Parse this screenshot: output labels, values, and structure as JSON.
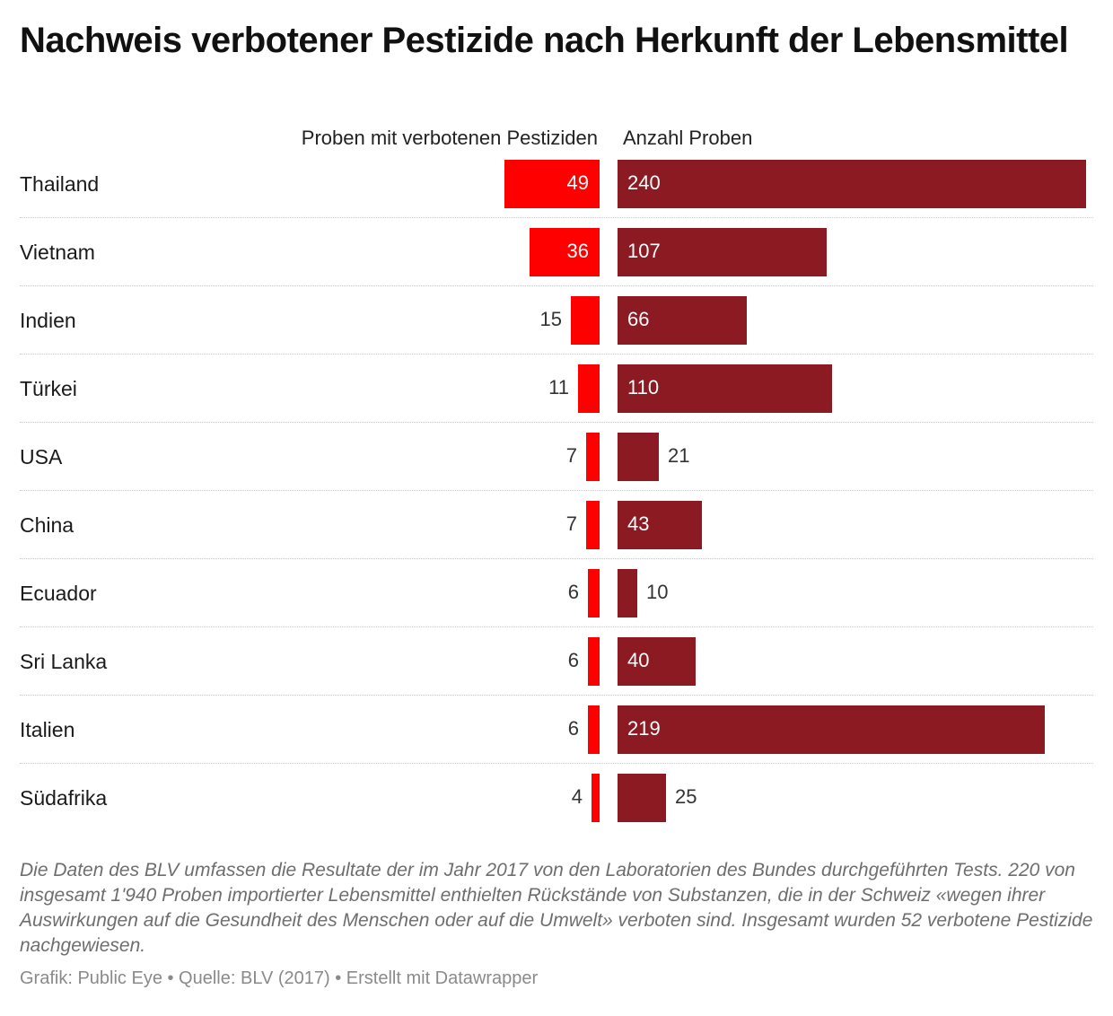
{
  "title": "Nachweis verbotener Pestizide nach Herkunft der Lebensmittel",
  "chart_data": {
    "type": "bar",
    "orientation": "horizontal",
    "categories": [
      "Thailand",
      "Vietnam",
      "Indien",
      "Türkei",
      "USA",
      "China",
      "Ecuador",
      "Sri Lanka",
      "Italien",
      "Südafrika"
    ],
    "series": [
      {
        "name": "Proben mit verbotenen Pestiziden",
        "values": [
          49,
          36,
          15,
          11,
          7,
          7,
          6,
          6,
          6,
          4
        ],
        "color": "#ff0000"
      },
      {
        "name": "Anzahl Proben",
        "values": [
          240,
          107,
          66,
          110,
          21,
          43,
          10,
          40,
          219,
          25
        ],
        "color": "#8b1a22"
      }
    ]
  },
  "note": "Die Daten des BLV umfassen die Resultate der im Jahr 2017 von den Laboratorien des Bundes durchgeführten Tests. 220 von insgesamt 1'940 Proben importierter Lebensmittel enthielten Rückstände von Substanzen, die in der Schweiz «wegen ihrer Auswirkungen auf die Gesundheit des Menschen oder auf die Umwelt» verboten sind. Insgesamt wurden 52 verbotene Pestizide nachgewiesen.",
  "credit": "Grafik: Public Eye • Quelle: BLV (2017) • Erstellt mit Datawrapper"
}
